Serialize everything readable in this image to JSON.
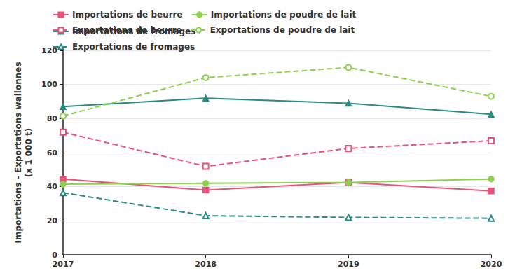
{
  "chart_data": {
    "type": "line",
    "y_label": "Importations - Exportations wallonnes\n(x 1 000 t)",
    "categories": [
      "2017",
      "2018",
      "2019",
      "2020"
    ],
    "series": [
      {
        "name": "Importations de beurre",
        "color": "#e8537a",
        "marker": "square",
        "line_style": "solid",
        "values": [
          44.5,
          38,
          42.5,
          37.5
        ]
      },
      {
        "name": "Importations de poudre de lait",
        "color": "#8fd14f",
        "marker": "circle",
        "line_style": "solid",
        "values": [
          41.5,
          42,
          42.5,
          44.5
        ]
      },
      {
        "name": "Importations de fromages",
        "color": "#2a8a84",
        "marker": "triangle",
        "line_style": "solid",
        "values": [
          87,
          92,
          89,
          82.5
        ]
      },
      {
        "name": "Exportations de beurre",
        "color": "#e8537a",
        "marker": "square-open",
        "line_style": "dashed",
        "values": [
          72,
          52,
          62.5,
          67
        ]
      },
      {
        "name": "Exportations de poudre de lait",
        "color": "#8fd14f",
        "marker": "circle-open",
        "line_style": "dashed",
        "values": [
          81.5,
          104,
          110,
          93
        ]
      },
      {
        "name": "Exportations de fromages",
        "color": "#2a8a84",
        "marker": "triangle-open",
        "line_style": "dashed",
        "values": [
          36.5,
          23,
          22,
          21.5
        ]
      }
    ],
    "ylim": [
      0,
      120
    ],
    "yticks": [
      0,
      20,
      40,
      60,
      80,
      100,
      120
    ],
    "grid": true,
    "legend": "top"
  }
}
